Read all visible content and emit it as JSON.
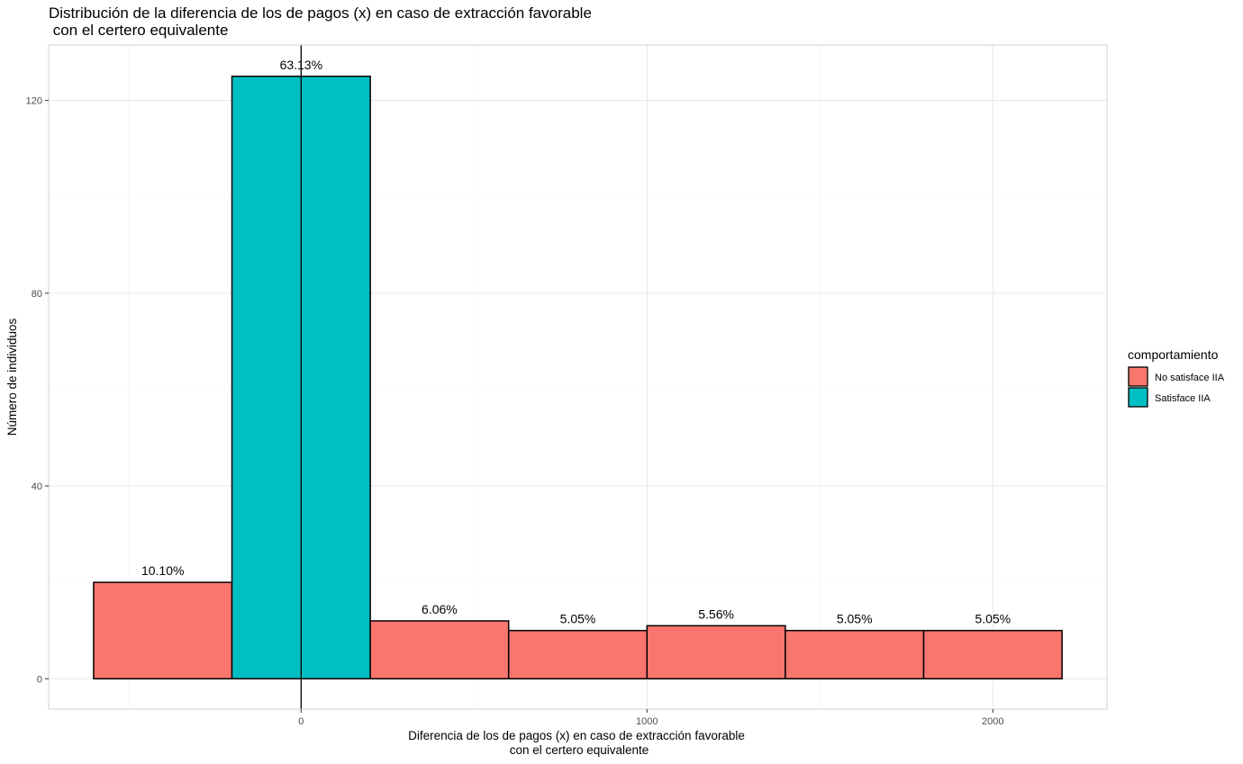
{
  "chart_data": {
    "type": "bar",
    "title_line1": "Distribución de la diferencia de los de pagos (x) en caso de extracción favorable",
    "title_line2": " con el certero equivalente",
    "xlabel_line1": "Diferencia de los de pagos (x) en caso de extracción favorable",
    "xlabel_line2": "con el certero equivalente",
    "ylabel": "Número de individuos",
    "xlim": [
      -730,
      2330
    ],
    "ylim": [
      -6.3,
      131.5
    ],
    "x_ticks": [
      0,
      1000,
      2000
    ],
    "x_tick_labels": [
      "0",
      "1000",
      "2000"
    ],
    "y_ticks": [
      0,
      40,
      80,
      120
    ],
    "y_tick_labels": [
      "0",
      "40",
      "80",
      "120"
    ],
    "grid": true,
    "vline_x": 0,
    "bars": [
      {
        "x0": -600,
        "x1": -200,
        "value": 20,
        "label": "10.10%",
        "group": "No satisface IIA"
      },
      {
        "x0": -200,
        "x1": 200,
        "value": 125,
        "label": "63.13%",
        "group": "Satisface IIA"
      },
      {
        "x0": 200,
        "x1": 600,
        "value": 12,
        "label": "6.06%",
        "group": "No satisface IIA"
      },
      {
        "x0": 600,
        "x1": 1000,
        "value": 10,
        "label": "5.05%",
        "group": "No satisface IIA"
      },
      {
        "x0": 1000,
        "x1": 1400,
        "value": 11,
        "label": "5.56%",
        "group": "No satisface IIA"
      },
      {
        "x0": 1400,
        "x1": 1800,
        "value": 10,
        "label": "5.05%",
        "group": "No satisface IIA"
      },
      {
        "x0": 1800,
        "x1": 2200,
        "value": 10,
        "label": "5.05%",
        "group": "No satisface IIA"
      }
    ],
    "legend": {
      "title": "comportamiento",
      "placement": "right",
      "entries": [
        {
          "name": "No satisface IIA",
          "color": "#F8766D"
        },
        {
          "name": "Satisface IIA",
          "color": "#00BFC4"
        }
      ]
    }
  }
}
